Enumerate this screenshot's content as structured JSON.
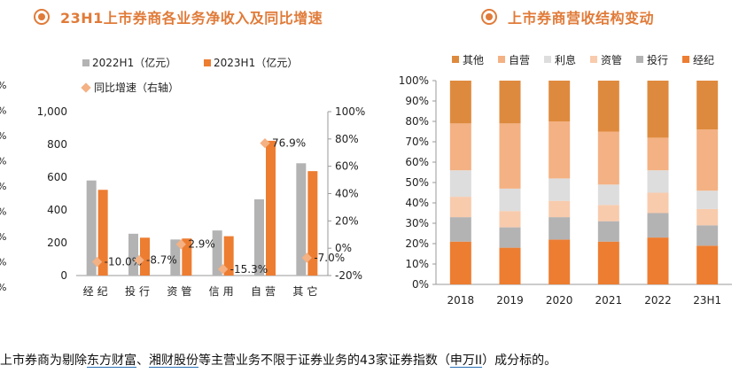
{
  "left_title": "23H1上市券商各业务净收入及同比增速",
  "right_title": "上市券商营收结构变动",
  "footer": {
    "part1": "上市券商为剔除",
    "link1": "东方财富",
    "sep": "、",
    "link2": "湘财股份",
    "part2": "等主营业务不限于证券业务的43家证券指数（",
    "link3": "申万II",
    "part3": "）成分标的。"
  },
  "colors": {
    "title": "#e07b39",
    "gray": "#b3b3b3",
    "orange": "#ed7d31",
    "diamond": "#f4b183"
  },
  "chart_data": [
    {
      "type": "bar",
      "categories": [
        "经纪",
        "投行",
        "资管",
        "信用",
        "自营",
        "其它"
      ],
      "series": [
        {
          "name": "2022H1（亿元）",
          "values": [
            580,
            255,
            220,
            275,
            465,
            685
          ]
        },
        {
          "name": "2023H1（亿元）",
          "values": [
            523,
            231,
            226,
            240,
            822,
            637
          ]
        }
      ],
      "secondary_series": {
        "name": "同比增速（右轴）",
        "values": [
          -10.0,
          -8.7,
          2.9,
          -15.3,
          76.9,
          -7.0
        ]
      },
      "data_labels": [
        "-10.0%",
        "-8.7%",
        "2.9%",
        "-15.3%",
        "76.9%",
        "-7.0%"
      ],
      "ylim": [
        0,
        1000
      ],
      "yticks": [
        "0",
        "200",
        "400",
        "600",
        "800",
        "1,000"
      ],
      "y2lim": [
        -20,
        100
      ],
      "y2ticks": [
        "-20%",
        "0%",
        "20%",
        "40%",
        "60%",
        "80%",
        "100%"
      ],
      "left_edge_ticks": [
        "%",
        "%",
        "%",
        "%",
        "%",
        "%",
        "%",
        "%",
        "%"
      ],
      "legend": "top"
    },
    {
      "type": "bar",
      "stacked": true,
      "categories": [
        "2018",
        "2019",
        "2020",
        "2021",
        "2022",
        "23H1"
      ],
      "series": [
        {
          "name": "经纪",
          "color": "#ed7d31",
          "values": [
            21,
            18,
            22,
            21,
            23,
            19
          ]
        },
        {
          "name": "投行",
          "color": "#b3b3b3",
          "values": [
            12,
            10,
            11,
            10,
            12,
            10
          ]
        },
        {
          "name": "资管",
          "color": "#f8cbad",
          "values": [
            10,
            8,
            8,
            8,
            10,
            8
          ]
        },
        {
          "name": "利息",
          "color": "#dddddd",
          "values": [
            13,
            11,
            11,
            10,
            11,
            9
          ]
        },
        {
          "name": "自营",
          "color": "#f4b183",
          "values": [
            23,
            32,
            28,
            26,
            16,
            30
          ]
        },
        {
          "name": "其他",
          "color": "#de8a3e",
          "values": [
            21,
            21,
            20,
            25,
            28,
            24
          ]
        }
      ],
      "ylim": [
        0,
        100
      ],
      "yticks": [
        "0%",
        "10%",
        "20%",
        "30%",
        "40%",
        "50%",
        "60%",
        "70%",
        "80%",
        "90%",
        "100%"
      ],
      "legend": "top"
    }
  ]
}
